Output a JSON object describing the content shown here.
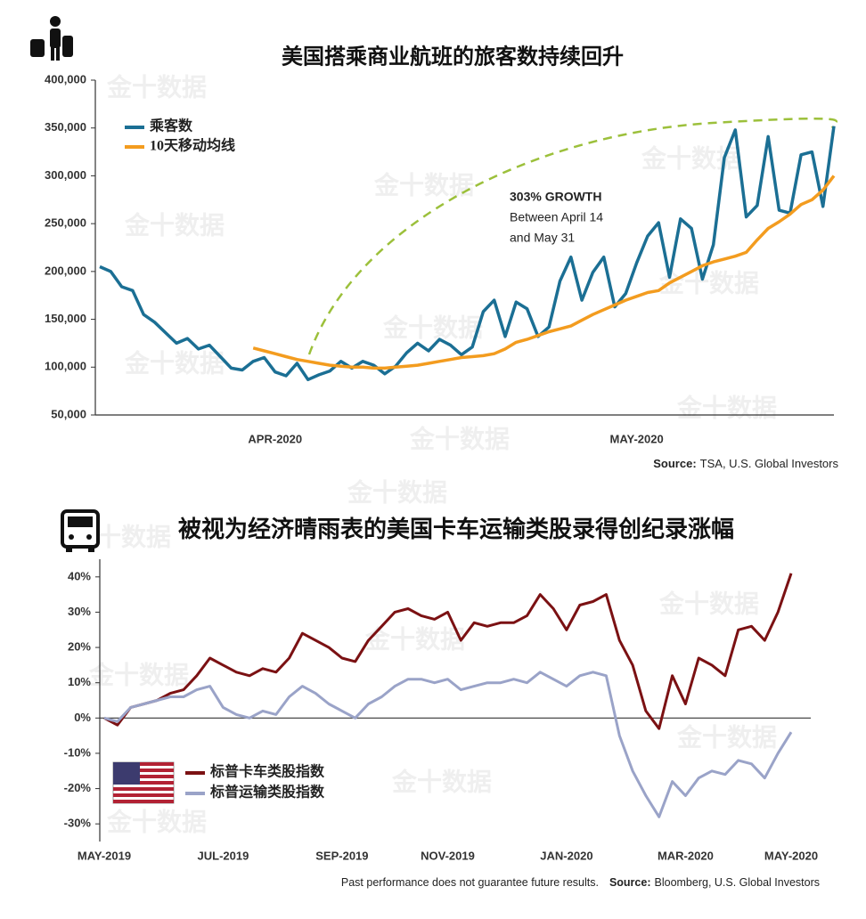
{
  "watermark": "金十数据",
  "chart_data": [
    {
      "type": "line",
      "title": "美国搭乘商业航班的旅客数持续回升",
      "categories": [
        null,
        null,
        null,
        null,
        null,
        null,
        null,
        null,
        null,
        null,
        null,
        null,
        null,
        null,
        null,
        null,
        "APR-2020",
        null,
        null,
        null,
        null,
        null,
        null,
        null,
        null,
        null,
        null,
        null,
        null,
        null,
        null,
        null,
        null,
        null,
        null,
        null,
        null,
        null,
        null,
        null,
        null,
        null,
        null,
        null,
        null,
        null,
        null,
        null,
        null,
        "MAY-2020",
        null,
        null,
        null,
        null,
        null,
        null,
        null,
        null,
        null,
        null,
        null,
        null,
        null,
        null,
        null,
        null,
        null,
        null
      ],
      "series": [
        {
          "name": "乘客数",
          "color": "#1b6f94",
          "values": [
            205000,
            200000,
            184000,
            180000,
            155000,
            147000,
            136000,
            125000,
            130000,
            119000,
            123000,
            111000,
            99000,
            97000,
            106000,
            110000,
            95000,
            91000,
            104000,
            87000,
            92000,
            96000,
            106000,
            99000,
            106000,
            102000,
            93000,
            101000,
            115000,
            125000,
            117000,
            129000,
            123000,
            113000,
            121000,
            158000,
            170000,
            132000,
            168000,
            161000,
            132000,
            142000,
            190000,
            215000,
            170000,
            199000,
            215000,
            163000,
            177000,
            209000,
            237000,
            251000,
            194000,
            255000,
            245000,
            192000,
            228000,
            319000,
            348000,
            257000,
            269000,
            341000,
            264000,
            261000,
            322000,
            325000,
            268000,
            352000
          ]
        },
        {
          "name": "10天移动均线",
          "color": "#f39c1f",
          "values": [
            null,
            null,
            null,
            null,
            null,
            null,
            null,
            null,
            null,
            null,
            null,
            null,
            null,
            null,
            120000,
            117000,
            114000,
            111000,
            108000,
            106000,
            104000,
            102000,
            101000,
            100000,
            100000,
            99000,
            99000,
            100000,
            101000,
            102000,
            104000,
            106000,
            108000,
            110000,
            111000,
            112000,
            114000,
            119000,
            126000,
            129000,
            133000,
            137000,
            140000,
            143000,
            149000,
            155000,
            160000,
            165000,
            170000,
            174000,
            178000,
            180000,
            188000,
            194000,
            200000,
            206000,
            210000,
            213000,
            216000,
            220000,
            233000,
            245000,
            252000,
            260000,
            270000,
            275000,
            285000,
            300000
          ]
        }
      ],
      "ylim": [
        50000,
        400000
      ],
      "yticks": [
        {
          "value": 50000,
          "label": "50,000"
        },
        {
          "value": 100000,
          "label": "100,000"
        },
        {
          "value": 150000,
          "label": "150,000"
        },
        {
          "value": 200000,
          "label": "200,000"
        },
        {
          "value": 250000,
          "label": "250,000"
        },
        {
          "value": 300000,
          "label": "300,000"
        },
        {
          "value": 350000,
          "label": "350,000"
        },
        {
          "value": 400000,
          "label": "400,000"
        }
      ],
      "annotation": {
        "title": "303% GROWTH",
        "lines": [
          "Between April 14",
          "and May 31"
        ]
      },
      "source_label": "Source:",
      "source": "TSA, U.S. Global Investors"
    },
    {
      "type": "line",
      "title": "被视为经济晴雨表的美国卡车运输类股录得创纪录涨幅",
      "categories": [
        "MAY-2019",
        null,
        null,
        null,
        null,
        null,
        null,
        null,
        null,
        "JUL-2019",
        null,
        null,
        null,
        null,
        null,
        null,
        null,
        null,
        "SEP-2019",
        null,
        null,
        null,
        null,
        null,
        null,
        null,
        "NOV-2019",
        null,
        null,
        null,
        null,
        null,
        null,
        null,
        null,
        "JAN-2020",
        null,
        null,
        null,
        null,
        null,
        null,
        null,
        null,
        "MAR-2020",
        null,
        null,
        null,
        null,
        null,
        null,
        null,
        "MAY-2020"
      ],
      "series": [
        {
          "name": "标普卡车类股指数",
          "color": "#7b1113",
          "values": [
            0,
            -2,
            3,
            4,
            5,
            7,
            8,
            12,
            17,
            15,
            13,
            12,
            14,
            13,
            17,
            24,
            22,
            20,
            17,
            16,
            22,
            26,
            30,
            31,
            29,
            28,
            30,
            22,
            27,
            26,
            27,
            27,
            29,
            35,
            31,
            25,
            32,
            33,
            35,
            22,
            15,
            2,
            -3,
            12,
            4,
            17,
            15,
            12,
            25,
            26,
            22,
            30,
            41
          ]
        },
        {
          "name": "标普运输类股指数",
          "color": "#9aa3c8",
          "values": [
            0,
            -1,
            3,
            4,
            5,
            6,
            6,
            8,
            9,
            3,
            1,
            0,
            2,
            1,
            6,
            9,
            7,
            4,
            2,
            0,
            4,
            6,
            9,
            11,
            11,
            10,
            11,
            8,
            9,
            10,
            10,
            11,
            10,
            13,
            11,
            9,
            12,
            13,
            12,
            -5,
            -15,
            -22,
            -28,
            -18,
            -22,
            -17,
            -15,
            -16,
            -12,
            -13,
            -17,
            -10,
            -4
          ]
        }
      ],
      "ylim": [
        -35,
        45
      ],
      "yticks": [
        {
          "value": -30,
          "label": "-30%"
        },
        {
          "value": -20,
          "label": "-20%"
        },
        {
          "value": -10,
          "label": "-10%"
        },
        {
          "value": 0,
          "label": "0%"
        },
        {
          "value": 10,
          "label": "10%"
        },
        {
          "value": 20,
          "label": "20%"
        },
        {
          "value": 30,
          "label": "30%"
        },
        {
          "value": 40,
          "label": "40%"
        }
      ],
      "disclaimer": "Past performance does not guarantee future results.",
      "source_label": "Source:",
      "source": "Bloomberg, U.S. Global Investors"
    }
  ]
}
